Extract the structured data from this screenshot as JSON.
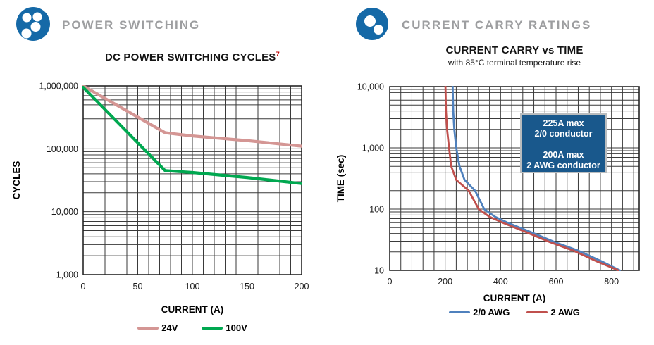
{
  "sections": {
    "left": {
      "header_title": "POWER SWITCHING",
      "icon": "connector-4-pin-icon"
    },
    "right": {
      "header_title": "CURRENT CARRY RATINGS",
      "icon": "connector-2-pin-icon"
    }
  },
  "colors": {
    "icon_blue": "#1569a7",
    "header_gray": "#9d9ea0",
    "annotation_box_blue": "#19588c",
    "footnote_red": "#c00000"
  },
  "chart_data": [
    {
      "id": "dc-power-switching-cycles",
      "type": "line",
      "title": "DC POWER SWITCHING CYCLES",
      "footnote_marker": "7",
      "xlabel": "CURRENT (A)",
      "ylabel": "CYCLES",
      "x_axis": {
        "min": 0,
        "max": 200,
        "ticks": [
          "0",
          "50",
          "100",
          "150",
          "200"
        ],
        "minor_grid_step": 10
      },
      "y_axis": {
        "scale": "log",
        "min": 1000,
        "max": 1000000,
        "ticks": [
          "1,000",
          "10,000",
          "100,000",
          "1,000,000"
        ]
      },
      "grid": "on",
      "legend_position": "bottom",
      "series": [
        {
          "name": "24V",
          "color": "#d49694",
          "points": [
            [
              0,
              1000000
            ],
            [
              75,
              180000
            ],
            [
              100,
              160000
            ],
            [
              150,
              135000
            ],
            [
              200,
              110000
            ]
          ]
        },
        {
          "name": "100V",
          "color": "#00a850",
          "points": [
            [
              0,
              950000
            ],
            [
              75,
              45000
            ],
            [
              100,
              42000
            ],
            [
              150,
              35000
            ],
            [
              200,
              28000
            ]
          ]
        }
      ]
    },
    {
      "id": "current-carry-vs-time",
      "type": "line",
      "title": "CURRENT CARRY vs TIME",
      "subtitle": "with 85°C terminal temperature rise",
      "xlabel": "CURRENT (A)",
      "ylabel": "TIME (sec)",
      "x_axis": {
        "min": 0,
        "max": 900,
        "ticks": [
          "0",
          "200",
          "400",
          "600",
          "800"
        ],
        "minor_grid_step": 40
      },
      "y_axis": {
        "scale": "log",
        "min": 10,
        "max": 10000,
        "ticks": [
          "10",
          "100",
          "1,000",
          "10,000"
        ]
      },
      "grid": "on",
      "legend_position": "bottom",
      "annotation": {
        "lines": [
          "225A max",
          "2/0 conductor",
          "",
          "200A max",
          "2 AWG conductor"
        ]
      },
      "series": [
        {
          "name": "2/0 AWG",
          "color": "#4f81bd",
          "points": [
            [
              227,
              10000
            ],
            [
              229,
              4000
            ],
            [
              233,
              2000
            ],
            [
              240,
              1000
            ],
            [
              252,
              500
            ],
            [
              270,
              300
            ],
            [
              308,
              200
            ],
            [
              341,
              100
            ],
            [
              380,
              75
            ],
            [
              425,
              60
            ],
            [
              510,
              42
            ],
            [
              595,
              29
            ],
            [
              680,
              21
            ],
            [
              765,
              14
            ],
            [
              830,
              10
            ]
          ]
        },
        {
          "name": "2 AWG",
          "color": "#c0504d",
          "points": [
            [
              201,
              10000
            ],
            [
              203,
              4000
            ],
            [
              207,
              2000
            ],
            [
              214,
              1000
            ],
            [
              222,
              500
            ],
            [
              240,
              300
            ],
            [
              285,
              200
            ],
            [
              321,
              100
            ],
            [
              360,
              75
            ],
            [
              408,
              60
            ],
            [
              493,
              42
            ],
            [
              578,
              29
            ],
            [
              663,
              21
            ],
            [
              748,
              14
            ],
            [
              825,
              10
            ]
          ]
        }
      ]
    }
  ]
}
